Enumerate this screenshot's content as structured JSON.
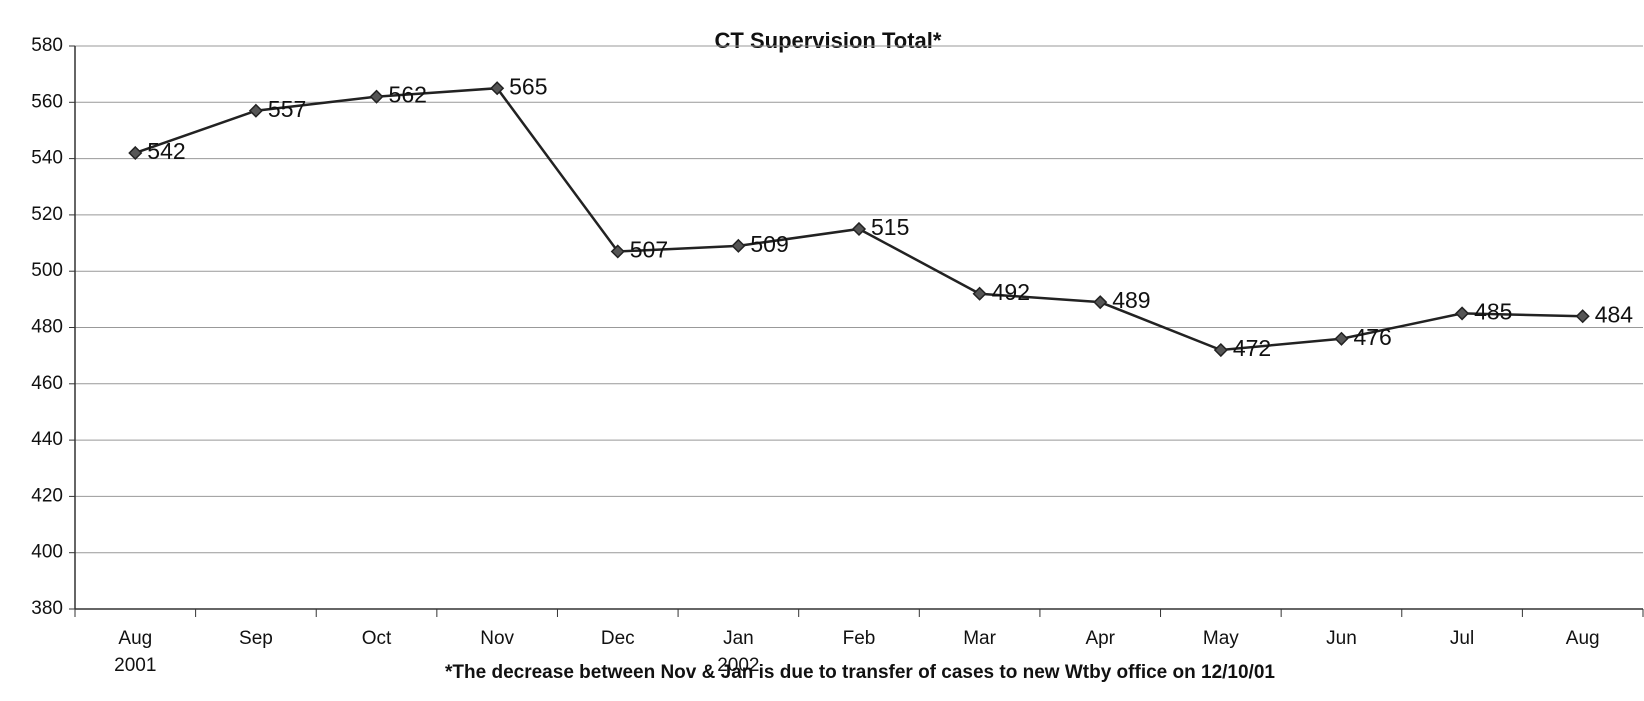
{
  "chart_data": {
    "type": "line",
    "title": "CT Supervision Total*",
    "categories": [
      "Aug",
      "Sep",
      "Oct",
      "Nov",
      "Dec",
      "Jan",
      "Feb",
      "Mar",
      "Apr",
      "May",
      "Jun",
      "Jul",
      "Aug"
    ],
    "year_labels": [
      "2001",
      null,
      null,
      null,
      null,
      "2002",
      null,
      null,
      null,
      null,
      null,
      null,
      null
    ],
    "series": [
      {
        "name": "CT Supervision Total",
        "color": "#222222",
        "values": [
          542,
          557,
          562,
          565,
          507,
          509,
          515,
          492,
          489,
          472,
          476,
          485,
          484
        ]
      }
    ],
    "ylim": [
      380,
      580
    ],
    "yticks": [
      380,
      400,
      420,
      440,
      460,
      480,
      500,
      520,
      540,
      560,
      580
    ],
    "grid": true,
    "annotation": "*The decrease between Nov & Jan is due to transfer of cases to new Wtby office on 12/10/01"
  }
}
